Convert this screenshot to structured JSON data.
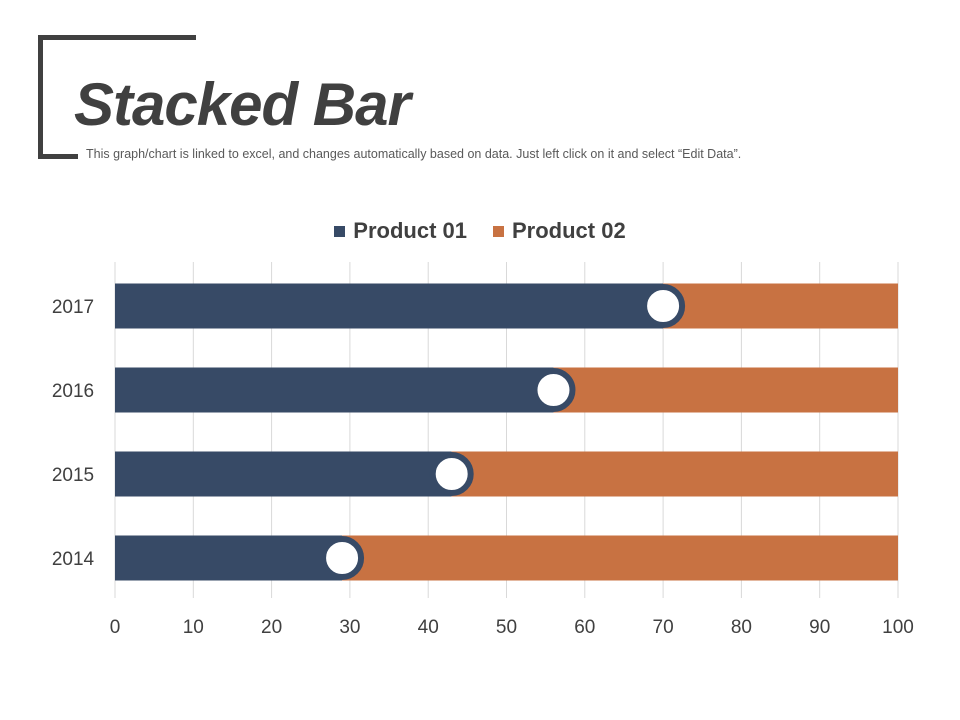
{
  "header": {
    "title": "Stacked Bar",
    "subtitle": "This graph/chart is linked to excel, and changes automatically based on data. Just left click on it and select “Edit Data”."
  },
  "colors": {
    "product01": "#374a66",
    "product02": "#c87242",
    "grid": "#d9d9d9",
    "text": "#404040",
    "marker_fill": "#ffffff"
  },
  "chart_data": {
    "type": "bar",
    "orientation": "horizontal",
    "stacked": true,
    "categories": [
      "2014",
      "2015",
      "2016",
      "2017"
    ],
    "series": [
      {
        "name": "Product 01",
        "values": [
          29,
          43,
          56,
          70
        ]
      },
      {
        "name": "Product 02",
        "values": [
          71,
          57,
          44,
          30
        ]
      }
    ],
    "xlim": [
      0,
      100
    ],
    "xticks": [
      0,
      10,
      20,
      30,
      40,
      50,
      60,
      70,
      80,
      90,
      100
    ],
    "grid": true,
    "legend_position": "top",
    "markers": "white circle at end of Product 01 segment"
  }
}
